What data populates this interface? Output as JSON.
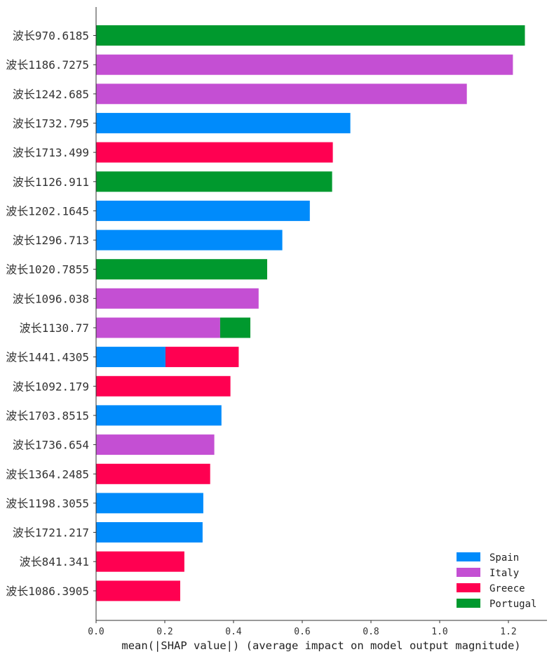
{
  "chart_data": {
    "type": "bar",
    "stacked": true,
    "orientation": "horizontal",
    "categories": [
      "波长970.6185",
      "波长1186.7275",
      "波长1242.685",
      "波长1732.795",
      "波长1713.499",
      "波长1126.911",
      "波长1202.1645",
      "波长1296.713",
      "波长1020.7855",
      "波长1096.038",
      "波长1130.77",
      "波长1441.4305",
      "波长1092.179",
      "波长1703.8515",
      "波长1736.654",
      "波长1364.2485",
      "波长1198.3055",
      "波长1721.217",
      "波长841.341",
      "波长1086.3905"
    ],
    "series": [
      {
        "name": "Spain",
        "color": "#008bfb",
        "values": [
          0,
          0,
          0,
          0.74,
          0,
          0,
          0.622,
          0.542,
          0,
          0,
          0,
          0.202,
          0,
          0.365,
          0,
          0,
          0.312,
          0.31,
          0,
          0
        ]
      },
      {
        "name": "Italy",
        "color": "#c44fd3",
        "values": [
          0,
          1.213,
          1.079,
          0,
          0,
          0,
          0,
          0,
          0,
          0.473,
          0.361,
          0,
          0,
          0,
          0.344,
          0,
          0,
          0,
          0,
          0
        ]
      },
      {
        "name": "Greece",
        "color": "#ff0051",
        "values": [
          0,
          0,
          0,
          0,
          0.689,
          0,
          0,
          0,
          0,
          0,
          0,
          0.213,
          0.391,
          0,
          0,
          0.332,
          0,
          0,
          0.257,
          0.245
        ]
      },
      {
        "name": "Portugal",
        "color": "#00992e",
        "values": [
          1.248,
          0,
          0,
          0,
          0,
          0.687,
          0,
          0,
          0.498,
          0,
          0.088,
          0,
          0,
          0,
          0,
          0,
          0,
          0,
          0,
          0
        ]
      }
    ],
    "xlim": [
      0,
      1.3
    ],
    "xticks": [
      "0.0",
      "0.2",
      "0.4",
      "0.6",
      "0.8",
      "1.0",
      "1.2"
    ],
    "xlabel": "mean(|SHAP value|) (average impact on model output magnitude)",
    "ylabel": "",
    "title": "",
    "grid": false,
    "legend_position": "bottom-right"
  }
}
